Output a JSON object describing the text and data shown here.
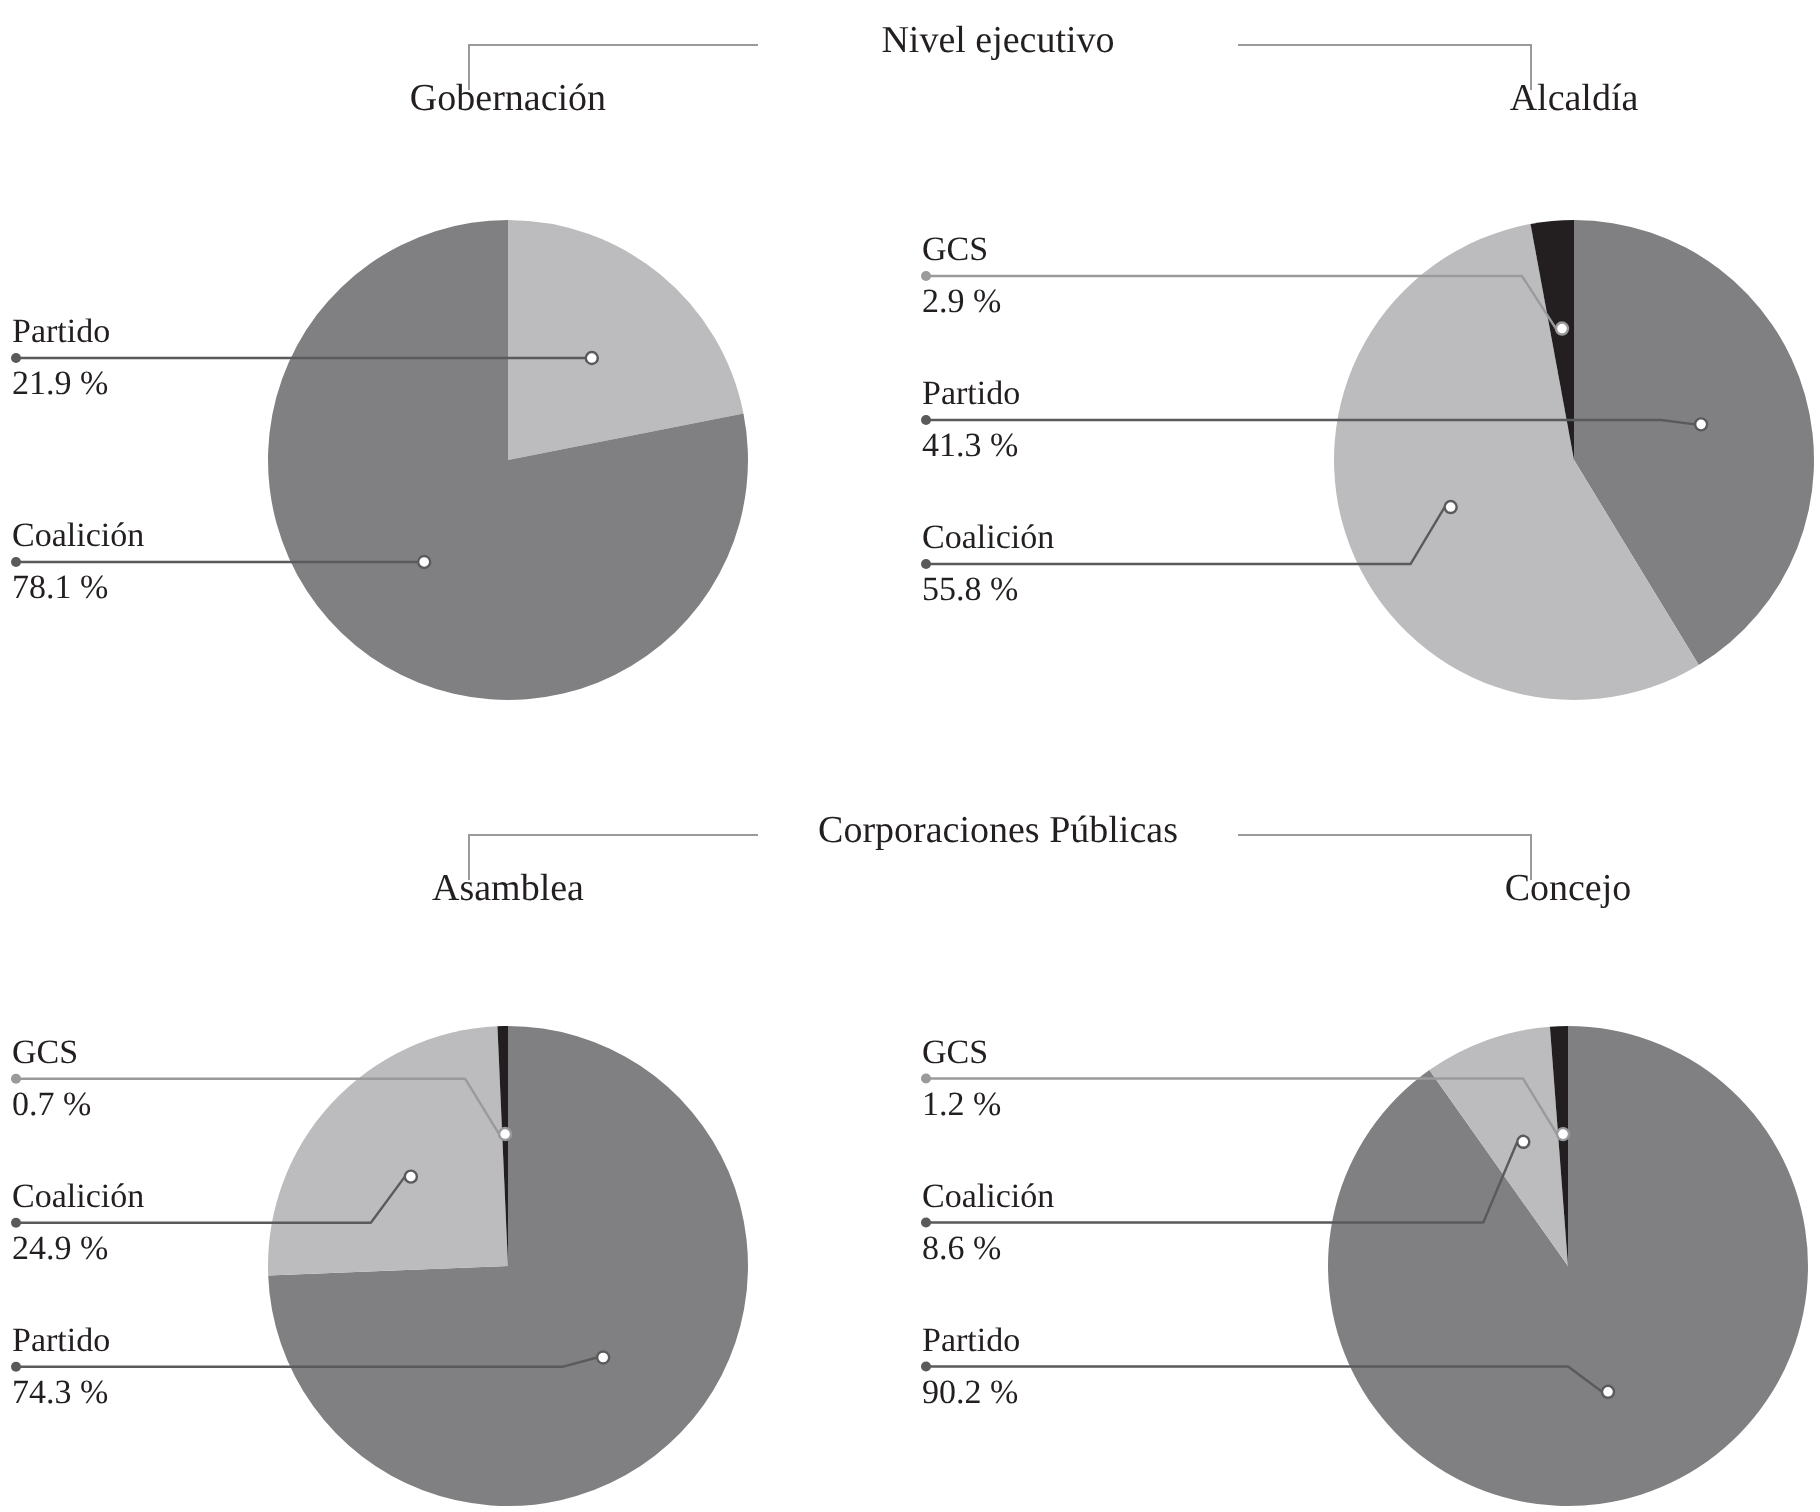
{
  "chart_data": [
    {
      "type": "pie",
      "title": "Gobernación",
      "annotations": [
        "Nivel ejecutivo"
      ],
      "categories": [
        "Partido",
        "Coalición"
      ],
      "values": [
        21.9,
        78.1
      ],
      "colors": [
        "#bcbcbe",
        "#808083"
      ],
      "value_labels": [
        "21.9 %",
        "78.1 %"
      ]
    },
    {
      "type": "pie",
      "title": "Alcaldía",
      "categories": [
        "Partido",
        "Coalición",
        "GCS"
      ],
      "values": [
        41.3,
        55.8,
        2.9
      ],
      "colors": [
        "#808083",
        "#bcbcbe",
        "#231f20"
      ],
      "value_labels": [
        "41.3 %",
        "55.8 %",
        "2.9 %"
      ]
    },
    {
      "type": "pie",
      "title": "Asamblea",
      "annotations": [
        "Corporaciones Públicas"
      ],
      "categories": [
        "Partido",
        "Coalición",
        "GCS"
      ],
      "values": [
        74.3,
        24.9,
        0.7
      ],
      "colors": [
        "#808083",
        "#bcbcbe",
        "#231f20"
      ],
      "value_labels": [
        "74.3 %",
        "24.9 %",
        "0.7 %"
      ]
    },
    {
      "type": "pie",
      "title": "Concejo",
      "categories": [
        "Partido",
        "Coalición",
        "GCS"
      ],
      "values": [
        90.2,
        8.6,
        1.2
      ],
      "colors": [
        "#808083",
        "#bcbcbe",
        "#231f20"
      ],
      "value_labels": [
        "90.2 %",
        "8.6 %",
        "1.2 %"
      ]
    }
  ]
}
